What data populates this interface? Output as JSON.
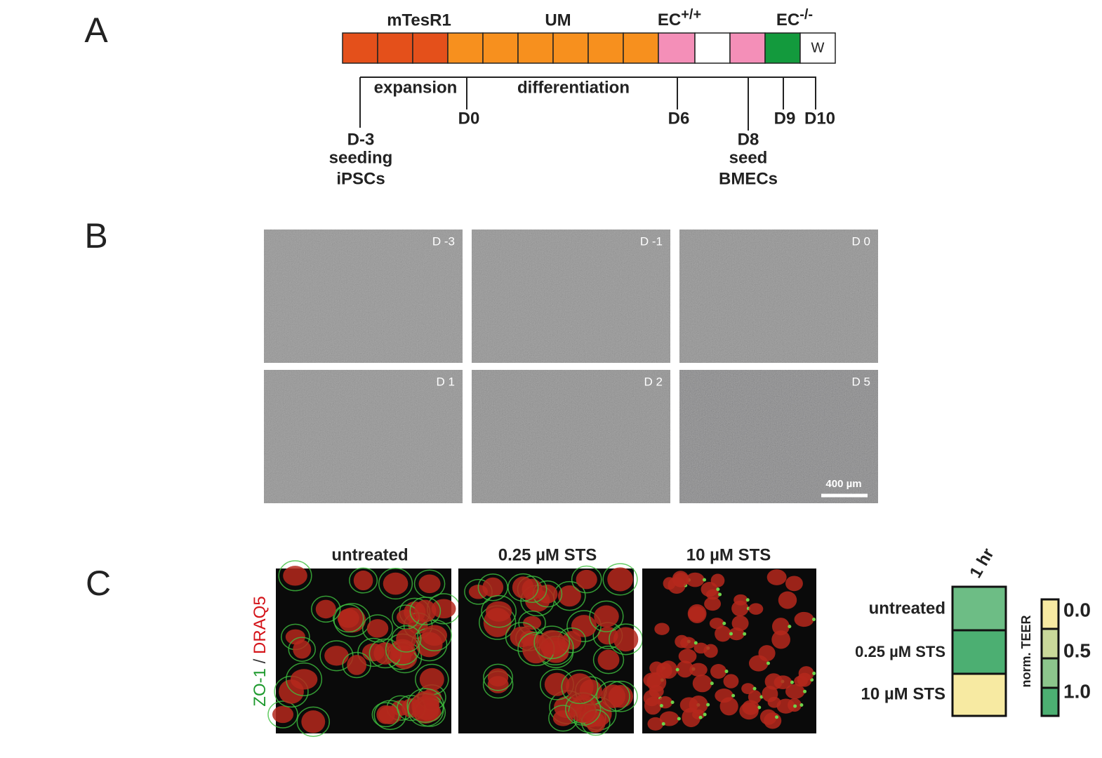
{
  "panels": [
    "A",
    "B",
    "C"
  ],
  "protocol": {
    "media": [
      "mTesR1",
      "UM"
    ],
    "ec_plus": {
      "base": "EC",
      "sup": "+/+"
    },
    "ec_minus": {
      "base": "EC",
      "sup": "-/-"
    },
    "w": "W",
    "phases": [
      "expansion",
      "differentiation"
    ],
    "days": [
      "D0",
      "D6",
      "D9",
      "D10"
    ],
    "seeding_ipsc": [
      "D-3",
      "seeding",
      "iPSCs"
    ],
    "seeding_bmec": [
      "D8",
      "seed",
      "BMECs"
    ]
  },
  "micrographs": {
    "labels": [
      "D -3",
      "D -1",
      "D 0",
      "D 1",
      "D 2",
      "D 5"
    ],
    "scale_bar": "400 µm"
  },
  "staining": {
    "conditions": [
      "untreated",
      "0.25 µM STS",
      "10 µM STS"
    ],
    "stain_label": {
      "first": "ZO-1",
      "sep": " / ",
      "second": "DRAQ5"
    },
    "time": "1 hr",
    "colorbar_title": "norm. TEER",
    "colorbar_labels": [
      "0.0",
      "0.5",
      "1.0"
    ]
  }
}
